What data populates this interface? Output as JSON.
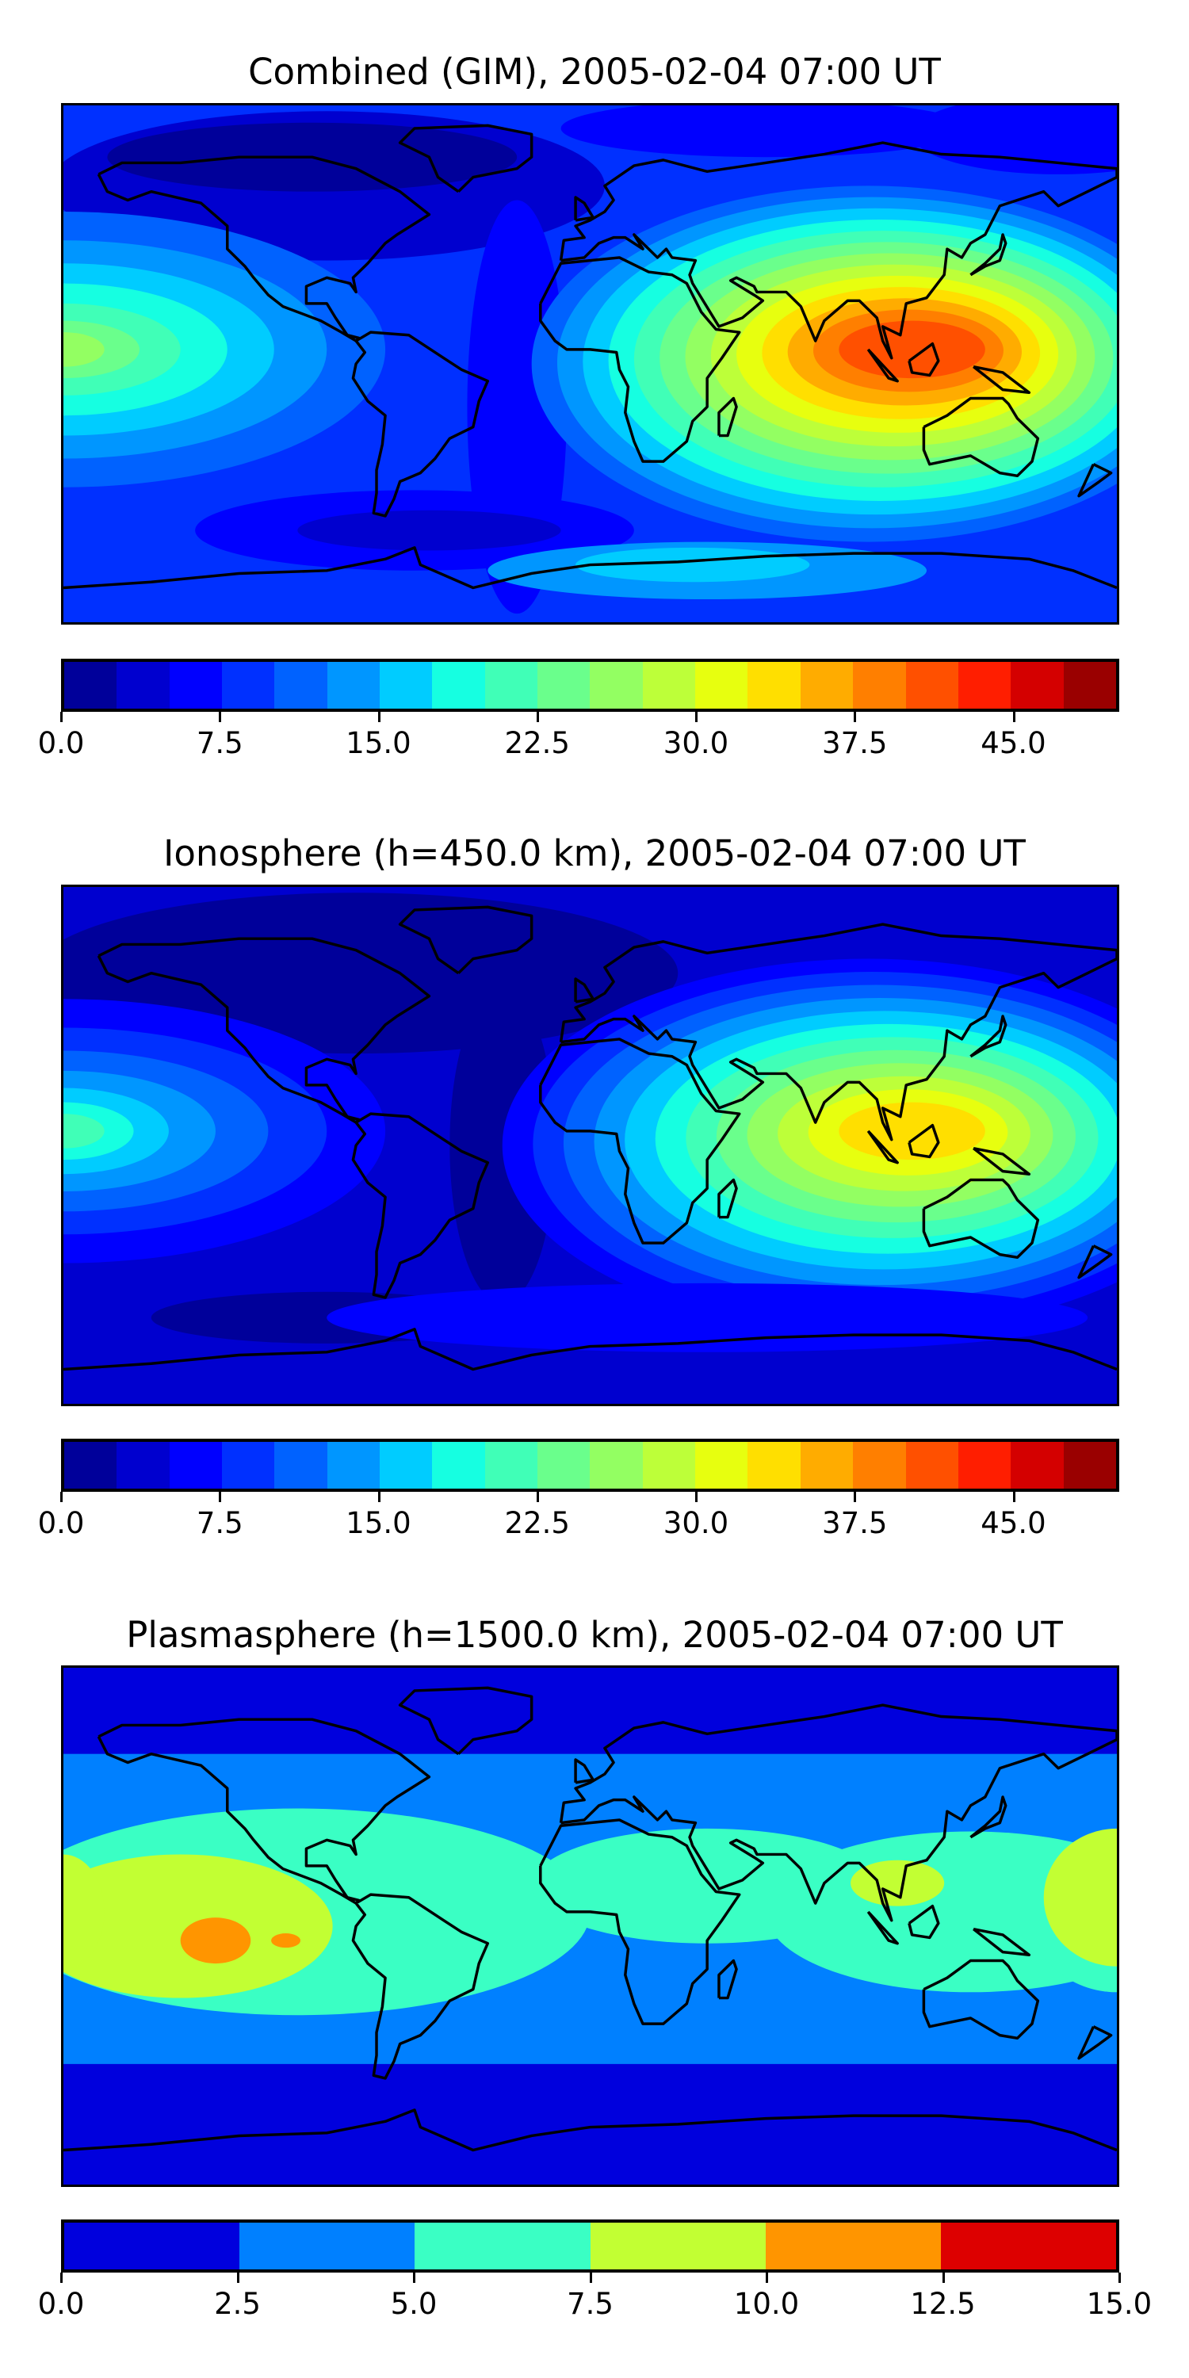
{
  "chart_data": [
    {
      "type": "heatmap",
      "title": "Combined (GIM), 2005-02-04 07:00 UT",
      "map_projection": "equirectangular",
      "lon_range": [
        -180,
        180
      ],
      "lat_range": [
        -90,
        90
      ],
      "colorbar": {
        "range": [
          0,
          50
        ],
        "step": 2.5,
        "tick_values": [
          0,
          7.5,
          15,
          22.5,
          30,
          37.5,
          45
        ],
        "tick_labels": [
          "0.0",
          "7.5",
          "15.0",
          "22.5",
          "30.0",
          "37.5",
          "45.0"
        ],
        "colors": [
          "#00009a",
          "#0000cf",
          "#0000ff",
          "#0030ff",
          "#0062ff",
          "#0096ff",
          "#00ccff",
          "#16ffe1",
          "#40ffb7",
          "#6aff8c",
          "#93ff62",
          "#bdff39",
          "#e7ff0f",
          "#ffdf00",
          "#ffac00",
          "#ff7f00",
          "#ff5000",
          "#ff1e00",
          "#d40000",
          "#9a0000"
        ]
      },
      "features": {
        "maximum_region": "Southeast Asia / Maritime Continent",
        "maximum_level_range": [
          40,
          42.5
        ],
        "secondary_maximum": "Central Pacific (~25)"
      }
    },
    {
      "type": "heatmap",
      "title": "Ionosphere  (h=450.0 km), 2005-02-04 07:00 UT",
      "map_projection": "equirectangular",
      "lon_range": [
        -180,
        180
      ],
      "lat_range": [
        -90,
        90
      ],
      "colorbar": {
        "range": [
          0,
          50
        ],
        "step": 2.5,
        "tick_values": [
          0,
          7.5,
          15,
          22.5,
          30,
          37.5,
          45
        ],
        "tick_labels": [
          "0.0",
          "7.5",
          "15.0",
          "22.5",
          "30.0",
          "37.5",
          "45.0"
        ],
        "colors": [
          "#00009a",
          "#0000cf",
          "#0000ff",
          "#0030ff",
          "#0062ff",
          "#0096ff",
          "#00ccff",
          "#16ffe1",
          "#40ffb7",
          "#6aff8c",
          "#93ff62",
          "#bdff39",
          "#e7ff0f",
          "#ffdf00",
          "#ffac00",
          "#ff7f00",
          "#ff5000",
          "#ff1e00",
          "#d40000",
          "#9a0000"
        ]
      },
      "features": {
        "maximum_region": "Southeast Asia",
        "maximum_level_range": [
          32.5,
          35
        ]
      }
    },
    {
      "type": "heatmap",
      "title": "Plasmasphere (h=1500.0 km), 2005-02-04 07:00 UT",
      "map_projection": "equirectangular",
      "lon_range": [
        -180,
        180
      ],
      "lat_range": [
        -90,
        90
      ],
      "colorbar": {
        "range": [
          0,
          15
        ],
        "step": 2.5,
        "tick_values": [
          0,
          2.5,
          5,
          7.5,
          10,
          12.5,
          15
        ],
        "tick_labels": [
          "0.0",
          "2.5",
          "5.0",
          "7.5",
          "10.0",
          "12.5",
          "15.0"
        ],
        "colors": [
          "#0000dd",
          "#0080ff",
          "#3affc4",
          "#c2ff33",
          "#ff9500",
          "#dd0000"
        ]
      },
      "features": {
        "maximum_region": "Eastern Pacific",
        "maximum_level_range": [
          10,
          12.5
        ]
      }
    }
  ],
  "style": {
    "coastline_color": "#000000"
  }
}
